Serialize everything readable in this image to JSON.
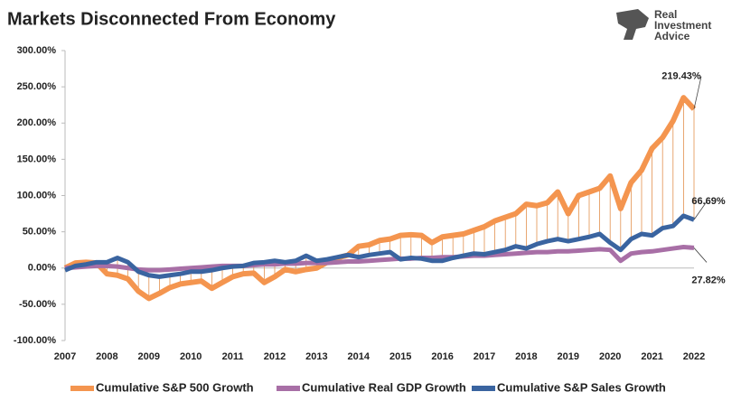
{
  "chart_data": {
    "type": "line",
    "title": "Markets Disconnected From Economy",
    "logo": {
      "line1": "Real",
      "line2": "Investment",
      "line3": "Advice"
    },
    "categories": [
      "2007",
      null,
      null,
      null,
      "2008",
      null,
      null,
      null,
      "2009",
      null,
      null,
      null,
      "2010",
      null,
      null,
      null,
      "2011",
      null,
      null,
      null,
      "2012",
      null,
      null,
      null,
      "2013",
      null,
      null,
      null,
      "2014",
      null,
      null,
      null,
      "2015",
      null,
      null,
      null,
      "2016",
      null,
      null,
      null,
      "2017",
      null,
      null,
      null,
      "2018",
      null,
      null,
      null,
      "2019",
      null,
      null,
      null,
      "2020",
      null,
      null,
      null,
      "2021",
      null,
      null,
      null,
      "2022"
    ],
    "series": [
      {
        "name": "Cumulative S&P 500 Growth",
        "color": "#f4954f",
        "values": [
          0,
          7,
          8,
          7,
          -8,
          -10,
          -15,
          -32,
          -42,
          -35,
          -27,
          -22,
          -20,
          -18,
          -28,
          -20,
          -12,
          -8,
          -7,
          -20,
          -12,
          -2,
          -5,
          -2,
          0,
          8,
          14,
          18,
          30,
          32,
          38,
          40,
          45,
          46,
          45,
          35,
          43,
          45,
          47,
          52,
          57,
          65,
          70,
          75,
          88,
          86,
          90,
          105,
          75,
          100,
          105,
          110,
          127,
          82,
          118,
          135,
          165,
          180,
          203,
          235,
          219.43
        ],
        "value_labels": [
          null,
          null,
          null,
          null,
          null,
          null,
          null,
          null,
          null,
          null,
          null,
          null,
          null,
          null,
          null,
          null,
          null,
          null,
          null,
          null,
          null,
          null,
          null,
          null,
          null,
          null,
          null,
          null,
          null,
          null,
          null,
          null,
          null,
          null,
          null,
          null,
          null,
          null,
          null,
          null,
          null,
          null,
          null,
          null,
          null,
          null,
          null,
          null,
          null,
          null,
          null,
          null,
          null,
          null,
          null,
          null,
          null,
          null,
          null,
          null,
          "219.43%"
        ]
      },
      {
        "name": "Cumulative Real GDP Growth",
        "color": "#a86fa6",
        "values": [
          0,
          1,
          2,
          3,
          3,
          2,
          0,
          -2,
          -3,
          -3,
          -2,
          -1,
          0,
          1,
          2,
          3,
          3,
          3,
          4,
          5,
          5,
          6,
          6,
          7,
          7,
          7,
          8,
          9,
          9,
          10,
          11,
          12,
          13,
          13,
          14,
          14,
          15,
          15,
          16,
          17,
          17,
          18,
          19,
          20,
          21,
          22,
          22,
          23,
          23,
          24,
          25,
          26,
          25,
          10,
          20,
          22,
          23,
          25,
          27,
          29,
          27.82
        ],
        "value_labels": [
          null,
          null,
          null,
          null,
          null,
          null,
          null,
          null,
          null,
          null,
          null,
          null,
          null,
          null,
          null,
          null,
          null,
          null,
          null,
          null,
          null,
          null,
          null,
          null,
          null,
          null,
          null,
          null,
          null,
          null,
          null,
          null,
          null,
          null,
          null,
          null,
          null,
          null,
          null,
          null,
          null,
          null,
          null,
          null,
          null,
          null,
          null,
          null,
          null,
          null,
          null,
          null,
          null,
          null,
          null,
          null,
          null,
          null,
          null,
          null,
          "27.82%"
        ]
      },
      {
        "name": "Cumulative S&P Sales Growth",
        "color": "#3a64a0",
        "values": [
          -3,
          3,
          5,
          8,
          8,
          14,
          8,
          -5,
          -10,
          -12,
          -10,
          -8,
          -5,
          -5,
          -3,
          0,
          2,
          3,
          7,
          8,
          10,
          8,
          10,
          17,
          10,
          12,
          15,
          18,
          15,
          18,
          20,
          22,
          12,
          14,
          13,
          10,
          10,
          14,
          17,
          20,
          19,
          22,
          25,
          30,
          27,
          33,
          37,
          40,
          37,
          40,
          43,
          47,
          35,
          25,
          40,
          47,
          45,
          55,
          58,
          72,
          66.69
        ],
        "value_labels": [
          null,
          null,
          null,
          null,
          null,
          null,
          null,
          null,
          null,
          null,
          null,
          null,
          null,
          null,
          null,
          null,
          null,
          null,
          null,
          null,
          null,
          null,
          null,
          null,
          null,
          null,
          null,
          null,
          null,
          null,
          null,
          null,
          null,
          null,
          null,
          null,
          null,
          null,
          null,
          null,
          null,
          null,
          null,
          null,
          null,
          null,
          null,
          null,
          null,
          null,
          null,
          null,
          null,
          null,
          null,
          null,
          null,
          null,
          null,
          null,
          "66.69%"
        ]
      }
    ],
    "ylim": [
      -100,
      300
    ],
    "yticks": [
      {
        "value": -100,
        "label": "-100.00%"
      },
      {
        "value": -50,
        "label": "-50.00%"
      },
      {
        "value": 0,
        "label": "0.00%"
      },
      {
        "value": 50,
        "label": "50.00%"
      },
      {
        "value": 100,
        "label": "100.00%"
      },
      {
        "value": 150,
        "label": "150.00%"
      },
      {
        "value": 200,
        "label": "200.00%"
      },
      {
        "value": 250,
        "label": "250.00%"
      },
      {
        "value": 300,
        "label": "300.00%"
      }
    ],
    "grid": false
  }
}
